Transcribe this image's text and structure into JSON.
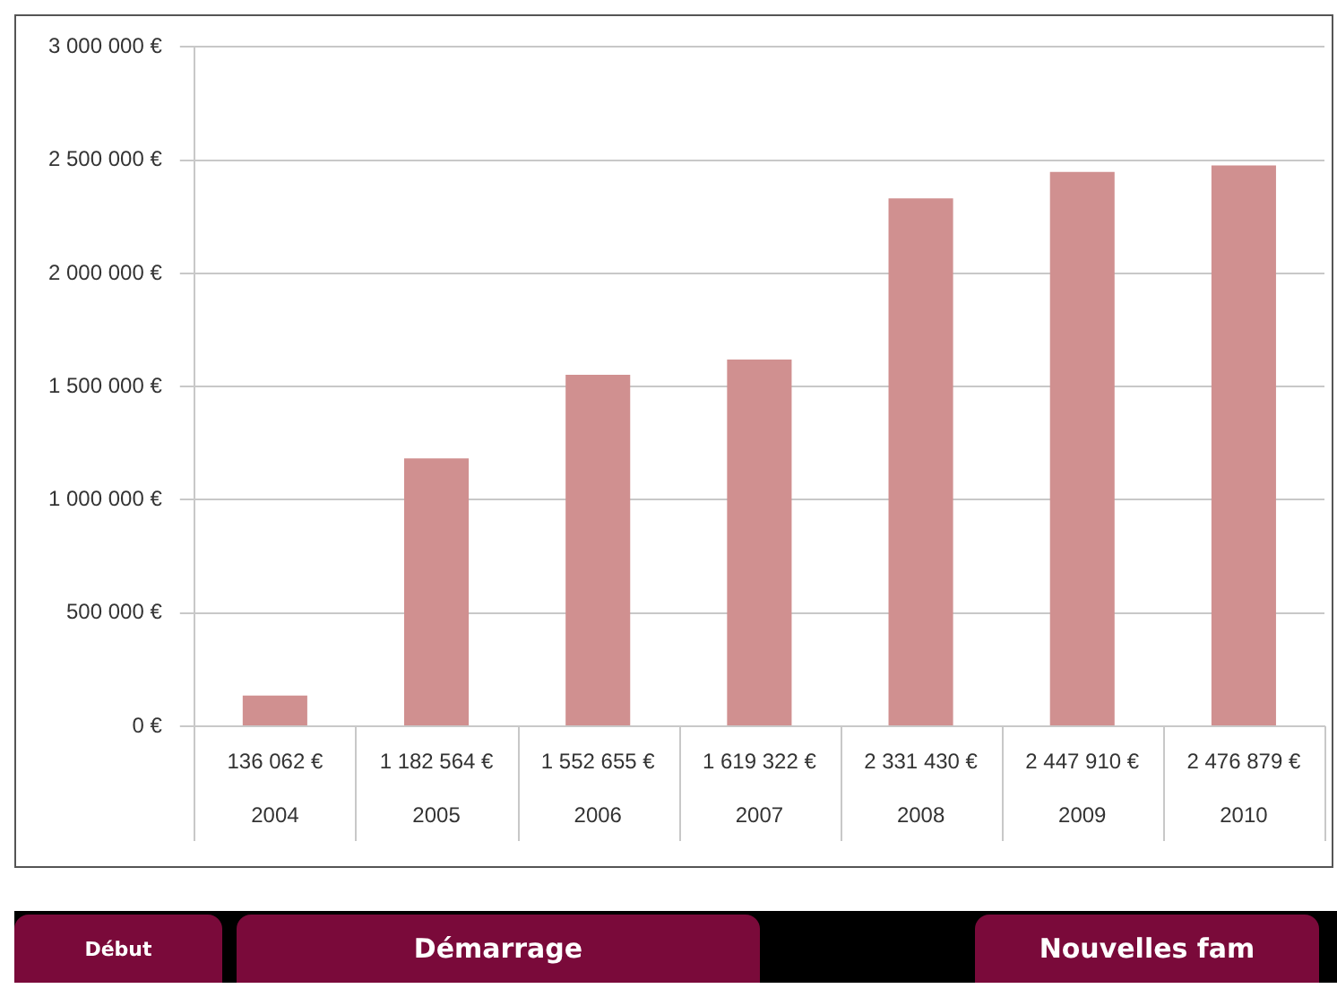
{
  "chart_data": {
    "type": "bar",
    "categories": [
      "2004",
      "2005",
      "2006",
      "2007",
      "2008",
      "2009",
      "2010"
    ],
    "values": [
      136062,
      1182564,
      1552655,
      1619322,
      2331430,
      2447910,
      2476879
    ],
    "value_labels": [
      "136 062 €",
      "1 182 564 €",
      "1 552 655 €",
      "1 619 322 €",
      "2 331 430 €",
      "2 447 910 €",
      "2 476 879 €"
    ],
    "color": "#d09090",
    "ylim": [
      0,
      3000000
    ],
    "yticks": [
      {
        "value": 0,
        "label": "0 €"
      },
      {
        "value": 500000,
        "label": "500 000 €"
      },
      {
        "value": 1000000,
        "label": "1 000 000 €"
      },
      {
        "value": 1500000,
        "label": "1 500 000 €"
      },
      {
        "value": 2000000,
        "label": "2 000 000 €"
      },
      {
        "value": 2500000,
        "label": "2 500 000 €"
      },
      {
        "value": 3000000,
        "label": "3 000 000 €"
      }
    ],
    "grid": "y",
    "annotations": [
      "Début",
      "Démarrage",
      "Nouvelles fam"
    ]
  }
}
